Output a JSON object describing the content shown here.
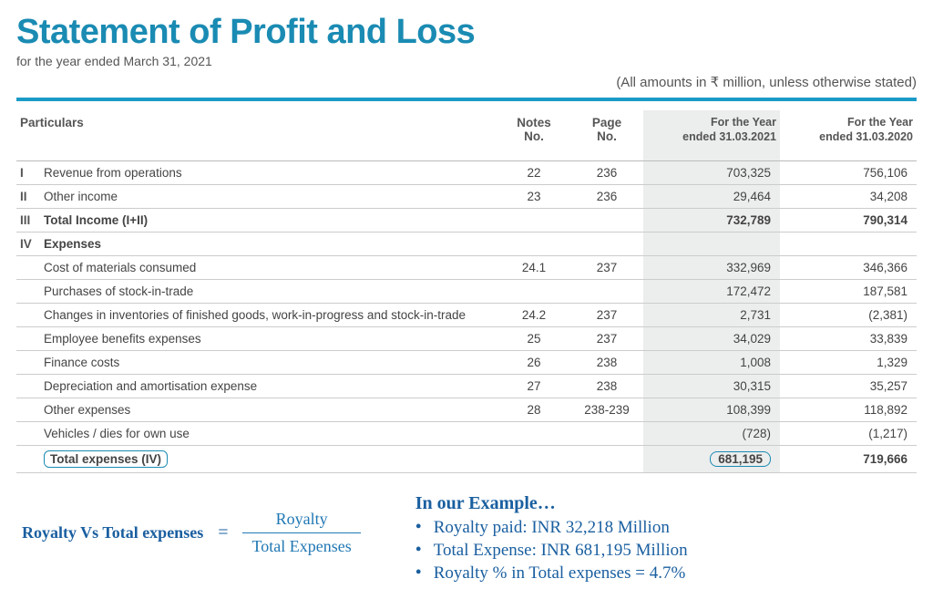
{
  "header": {
    "title": "Statement of Profit and Loss",
    "subtitle": "for the year ended March 31, 2021",
    "amounts_note": "(All amounts in ₹ million, unless otherwise stated)"
  },
  "table": {
    "columns": {
      "particulars": "Particulars",
      "notes": "Notes\nNo.",
      "page": "Page\nNo.",
      "y2021": "For the Year\nended 31.03.2021",
      "y2020": "For the Year\nended 31.03.2020"
    },
    "rows": [
      {
        "roman": "I",
        "label": "Revenue from operations",
        "notes": "22",
        "page": "236",
        "y2021": "703,325",
        "y2020": "756,106",
        "bold": false
      },
      {
        "roman": "II",
        "label": "Other income",
        "notes": "23",
        "page": "236",
        "y2021": "29,464",
        "y2020": "34,208",
        "bold": false
      },
      {
        "roman": "III",
        "label": "Total Income (I+II)",
        "notes": "",
        "page": "",
        "y2021": "732,789",
        "y2020": "790,314",
        "bold": true
      },
      {
        "roman": "IV",
        "label": "Expenses",
        "notes": "",
        "page": "",
        "y2021": "",
        "y2020": "",
        "section": true
      },
      {
        "roman": "",
        "label": "Cost of materials consumed",
        "notes": "24.1",
        "page": "237",
        "y2021": "332,969",
        "y2020": "346,366",
        "bold": false
      },
      {
        "roman": "",
        "label": "Purchases of stock-in-trade",
        "notes": "",
        "page": "",
        "y2021": "172,472",
        "y2020": "187,581",
        "bold": false
      },
      {
        "roman": "",
        "label": "Changes in inventories of finished goods, work-in-progress and stock-in-trade",
        "notes": "24.2",
        "page": "237",
        "y2021": "2,731",
        "y2020": "(2,381)",
        "bold": false
      },
      {
        "roman": "",
        "label": "Employee benefits expenses",
        "notes": "25",
        "page": "237",
        "y2021": "34,029",
        "y2020": "33,839",
        "bold": false
      },
      {
        "roman": "",
        "label": "Finance costs",
        "notes": "26",
        "page": "238",
        "y2021": "1,008",
        "y2020": "1,329",
        "bold": false
      },
      {
        "roman": "",
        "label": "Depreciation and amortisation expense",
        "notes": "27",
        "page": "238",
        "y2021": "30,315",
        "y2020": "35,257",
        "bold": false
      },
      {
        "roman": "",
        "label": "Other expenses",
        "notes": "28",
        "page": "238-239",
        "y2021": "108,399",
        "y2020": "118,892",
        "bold": false
      },
      {
        "roman": "",
        "label": "Vehicles / dies for own use",
        "notes": "",
        "page": "",
        "y2021": "(728)",
        "y2020": "(1,217)",
        "bold": false
      },
      {
        "roman": "",
        "label": "Total expenses (IV)",
        "notes": "",
        "page": "",
        "y2021": "681,195",
        "y2020": "719,666",
        "bold": true,
        "circled": true
      }
    ]
  },
  "formula": {
    "lhs": "Royalty Vs Total expenses",
    "eq": "=",
    "numerator": "Royalty",
    "denominator": "Total Expenses"
  },
  "example": {
    "heading": "In our Example…",
    "bullets": [
      "Royalty paid: INR 32,218 Million",
      "Total Expense: INR 681,195 Million",
      "Royalty % in Total expenses = 4.7%"
    ]
  },
  "style": {
    "accent_color": "#1a8bb3",
    "rule_color": "#1a9bc7",
    "highlight_bg": "#eceded",
    "text_color": "#444",
    "annotation_color": "#1a5fa0"
  }
}
